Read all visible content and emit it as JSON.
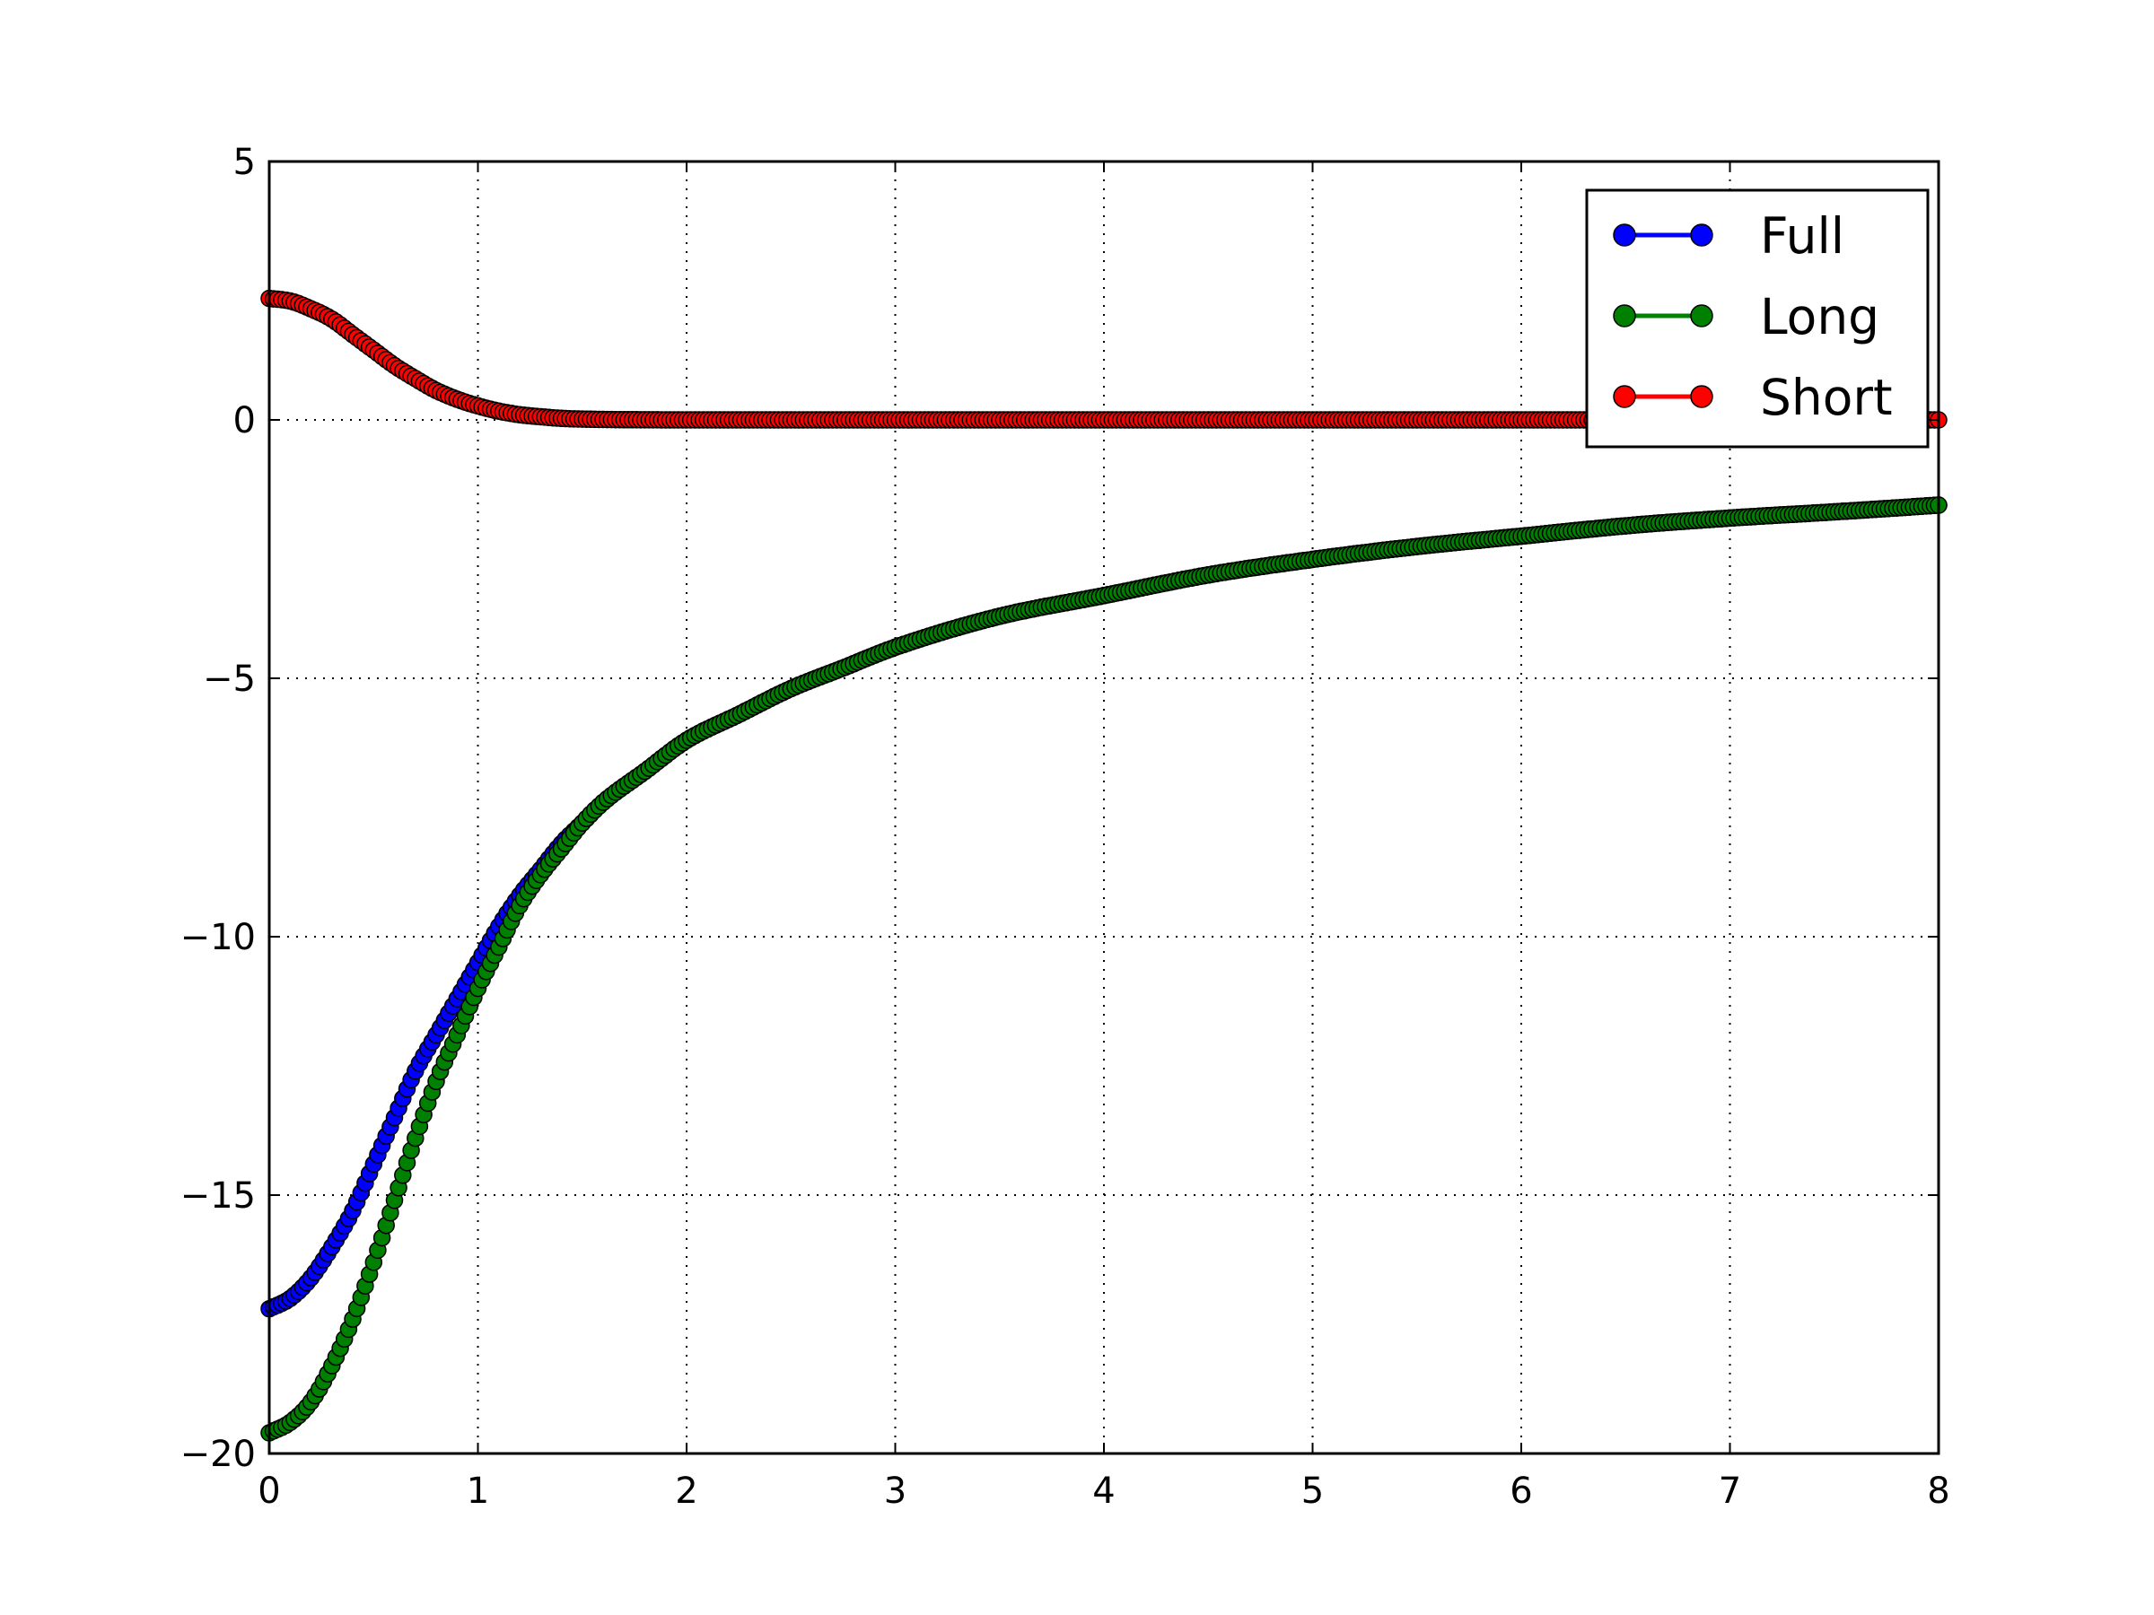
{
  "chart_data": {
    "type": "line",
    "title": "",
    "xlabel": "",
    "ylabel": "",
    "xlim": [
      0,
      8
    ],
    "ylim": [
      -20,
      5
    ],
    "xticks": [
      0,
      1,
      2,
      3,
      4,
      5,
      6,
      7,
      8
    ],
    "yticks": [
      5,
      0,
      -5,
      -10,
      -15,
      -20
    ],
    "xtick_labels": [
      "0",
      "1",
      "2",
      "3",
      "4",
      "5",
      "6",
      "7",
      "8"
    ],
    "ytick_labels": [
      "5",
      "0",
      "−5",
      "−10",
      "−15",
      "−20"
    ],
    "grid": true,
    "grid_style": "dotted",
    "legend_position": "top-right",
    "marker": "circle",
    "series": [
      {
        "name": "Full",
        "color": "#0000ff",
        "x": [
          0,
          0.1,
          0.2,
          0.3,
          0.4,
          0.5,
          0.6,
          0.7,
          0.8,
          0.9,
          1.0,
          1.1,
          1.2,
          1.3,
          1.4,
          1.5,
          1.6,
          1.8,
          2.0,
          2.25,
          2.5,
          2.75,
          3.0,
          3.5,
          4.0,
          4.5,
          5.0,
          5.5,
          6.0,
          6.5,
          7.0,
          7.5,
          8.0
        ],
        "y": [
          -17.2,
          -17.0,
          -16.6,
          -16.0,
          -15.3,
          -14.4,
          -13.5,
          -12.6,
          -11.9,
          -11.2,
          -10.5,
          -9.8,
          -9.2,
          -8.7,
          -8.2,
          -7.8,
          -7.4,
          -6.8,
          -6.2,
          -5.7,
          -5.2,
          -4.8,
          -4.4,
          -3.8,
          -3.4,
          -3.0,
          -2.7,
          -2.45,
          -2.25,
          -2.05,
          -1.9,
          -1.78,
          -1.65
        ]
      },
      {
        "name": "Long",
        "color": "#008000",
        "x": [
          0,
          0.1,
          0.2,
          0.3,
          0.4,
          0.5,
          0.6,
          0.7,
          0.8,
          0.9,
          1.0,
          1.1,
          1.2,
          1.3,
          1.4,
          1.5,
          1.6,
          1.8,
          2.0,
          2.25,
          2.5,
          2.75,
          3.0,
          3.5,
          4.0,
          4.5,
          5.0,
          5.5,
          6.0,
          6.5,
          7.0,
          7.5,
          8.0
        ],
        "y": [
          -19.6,
          -19.4,
          -19.0,
          -18.3,
          -17.4,
          -16.3,
          -15.1,
          -13.9,
          -12.8,
          -11.9,
          -11.0,
          -10.2,
          -9.4,
          -8.8,
          -8.3,
          -7.8,
          -7.4,
          -6.8,
          -6.2,
          -5.7,
          -5.2,
          -4.8,
          -4.4,
          -3.8,
          -3.4,
          -3.0,
          -2.7,
          -2.45,
          -2.25,
          -2.05,
          -1.9,
          -1.78,
          -1.65
        ]
      },
      {
        "name": "Short",
        "color": "#ff0000",
        "x": [
          0,
          0.1,
          0.2,
          0.3,
          0.4,
          0.5,
          0.6,
          0.7,
          0.8,
          0.9,
          1.0,
          1.1,
          1.2,
          1.3,
          1.4,
          1.5,
          1.6,
          1.8,
          2.0,
          2.25,
          2.5,
          2.75,
          3.0,
          3.5,
          4.0,
          4.5,
          5.0,
          5.5,
          6.0,
          6.5,
          7.0,
          7.5,
          8.0
        ],
        "y": [
          2.35,
          2.3,
          2.15,
          1.95,
          1.65,
          1.35,
          1.05,
          0.8,
          0.57,
          0.4,
          0.27,
          0.17,
          0.1,
          0.06,
          0.03,
          0.015,
          0.008,
          0.002,
          0,
          0,
          0,
          0,
          0,
          0,
          0,
          0,
          0,
          0,
          0,
          0,
          0,
          0,
          0
        ]
      }
    ]
  }
}
